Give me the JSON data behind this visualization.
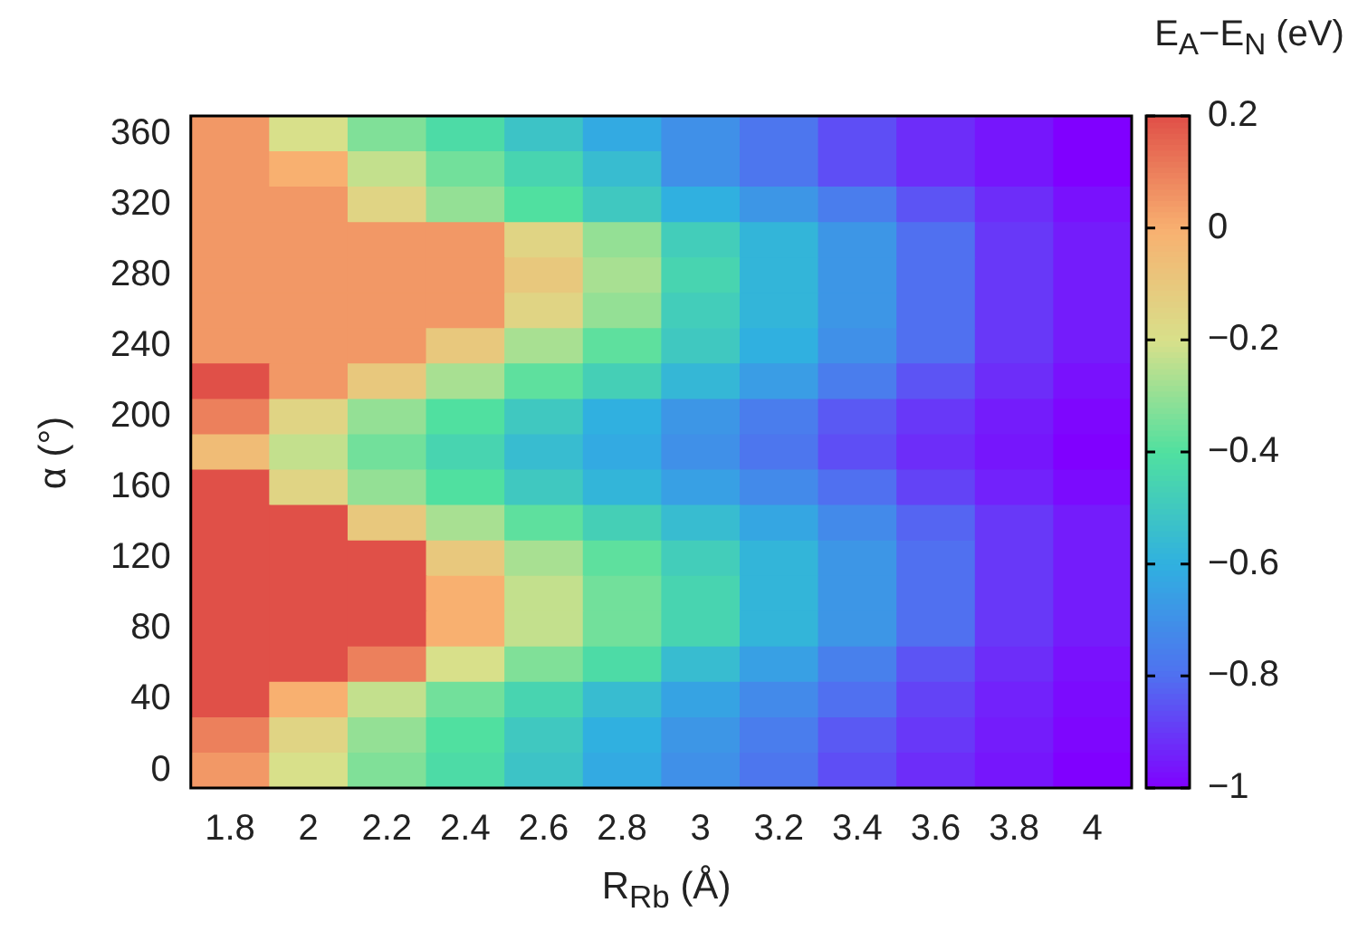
{
  "chart_data": {
    "type": "heatmap",
    "xlabel": "R$_{Rb}$ (Å)",
    "ylabel": "α (°)",
    "clabel": "E$_{A}$−E$_{N}$ (eV)",
    "categories": [
      "1.8",
      "2",
      "2.2",
      "2.4",
      "2.6",
      "2.8",
      "3",
      "3.2",
      "3.4",
      "3.6",
      "3.8",
      "4"
    ],
    "y_categories": [
      "360",
      null,
      "320",
      null,
      "280",
      null,
      "240",
      null,
      "200",
      null,
      "160",
      null,
      "120",
      null,
      "80",
      null,
      "40",
      null,
      "0"
    ],
    "cells": [
      [
        0.05,
        -0.2,
        -0.33,
        -0.42,
        -0.52,
        -0.62,
        -0.7,
        -0.78,
        -0.86,
        -0.92,
        -0.96,
        -1
      ],
      [
        0.05,
        0,
        -0.23,
        -0.35,
        -0.45,
        -0.55,
        -0.7,
        -0.78,
        -0.86,
        -0.92,
        -0.96,
        -1
      ],
      [
        0.05,
        0.05,
        -0.15,
        -0.3,
        -0.4,
        -0.5,
        -0.6,
        -0.68,
        -0.76,
        -0.85,
        -0.92,
        -0.97
      ],
      [
        0.05,
        0.05,
        0.05,
        0.05,
        -0.15,
        -0.3,
        -0.48,
        -0.58,
        -0.68,
        -0.8,
        -0.9,
        -0.95
      ],
      [
        0.05,
        0.05,
        0.05,
        0.05,
        -0.1,
        -0.27,
        -0.45,
        -0.58,
        -0.68,
        -0.8,
        -0.9,
        -0.95
      ],
      [
        0.05,
        0.05,
        0.05,
        0.05,
        -0.15,
        -0.3,
        -0.48,
        -0.58,
        -0.68,
        -0.8,
        -0.9,
        -0.95
      ],
      [
        0.05,
        0.05,
        0.05,
        -0.1,
        -0.27,
        -0.38,
        -0.5,
        -0.6,
        -0.7,
        -0.8,
        -0.9,
        -0.95
      ],
      [
        0.2,
        0.05,
        -0.1,
        -0.27,
        -0.38,
        -0.47,
        -0.57,
        -0.66,
        -0.76,
        -0.85,
        -0.92,
        -0.97
      ],
      [
        0.1,
        -0.15,
        -0.3,
        -0.4,
        -0.5,
        -0.6,
        -0.68,
        -0.76,
        -0.84,
        -0.9,
        -0.95,
        -0.99
      ],
      [
        -0.05,
        -0.23,
        -0.35,
        -0.45,
        -0.55,
        -0.62,
        -0.7,
        -0.78,
        -0.86,
        -0.92,
        -0.96,
        -1
      ],
      [
        0.2,
        -0.15,
        -0.3,
        -0.4,
        -0.5,
        -0.58,
        -0.65,
        -0.72,
        -0.8,
        -0.88,
        -0.94,
        -0.98
      ],
      [
        0.2,
        0.2,
        -0.1,
        -0.27,
        -0.38,
        -0.47,
        -0.55,
        -0.63,
        -0.72,
        -0.82,
        -0.9,
        -0.95
      ],
      [
        0.2,
        0.2,
        0.2,
        -0.1,
        -0.27,
        -0.38,
        -0.48,
        -0.58,
        -0.68,
        -0.8,
        -0.9,
        -0.95
      ],
      [
        0.2,
        0.2,
        0.2,
        0,
        -0.23,
        -0.35,
        -0.45,
        -0.58,
        -0.68,
        -0.8,
        -0.9,
        -0.95
      ],
      [
        0.2,
        0.2,
        0.2,
        0,
        -0.23,
        -0.35,
        -0.45,
        -0.58,
        -0.68,
        -0.8,
        -0.9,
        -0.95
      ],
      [
        0.2,
        0.2,
        0.1,
        -0.2,
        -0.33,
        -0.42,
        -0.55,
        -0.65,
        -0.75,
        -0.85,
        -0.92,
        -0.97
      ],
      [
        0.2,
        0,
        -0.23,
        -0.35,
        -0.45,
        -0.55,
        -0.64,
        -0.72,
        -0.8,
        -0.88,
        -0.94,
        -0.98
      ],
      [
        0.1,
        -0.15,
        -0.3,
        -0.4,
        -0.5,
        -0.6,
        -0.68,
        -0.76,
        -0.84,
        -0.9,
        -0.95,
        -0.99
      ],
      [
        0.05,
        -0.2,
        -0.33,
        -0.42,
        -0.52,
        -0.62,
        -0.7,
        -0.78,
        -0.86,
        -0.92,
        -0.96,
        -1
      ]
    ],
    "clim": [
      -1,
      0.2
    ],
    "cticks": [
      {
        "value": -1,
        "label": "−1"
      },
      {
        "value": -0.8,
        "label": "−0.8"
      },
      {
        "value": -0.6,
        "label": "−0.6"
      },
      {
        "value": -0.4,
        "label": "−0.4"
      },
      {
        "value": -0.2,
        "label": "−0.2"
      },
      0,
      0.2
    ]
  }
}
